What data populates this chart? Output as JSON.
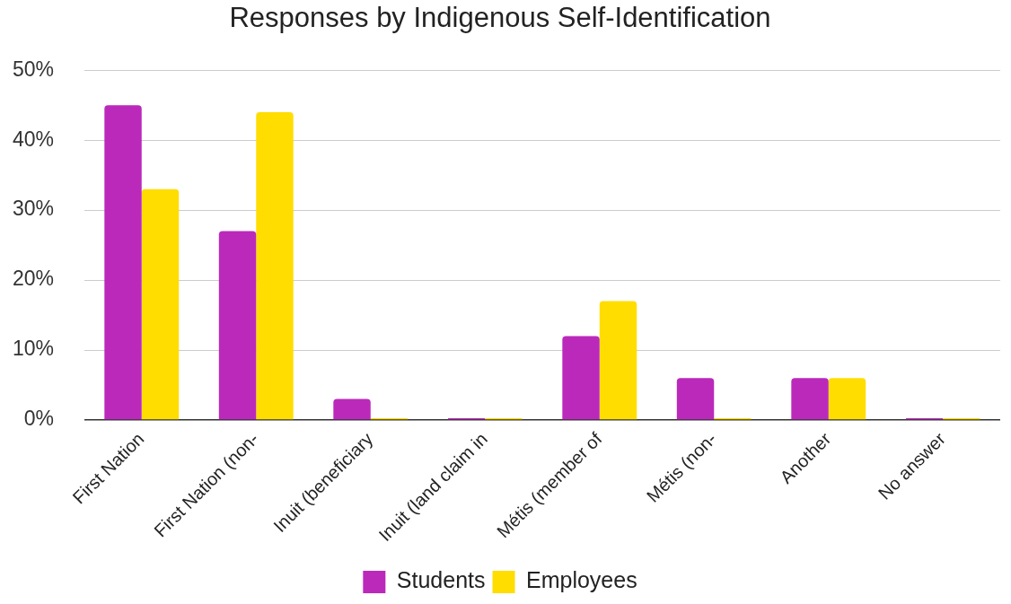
{
  "chart_data": {
    "type": "bar",
    "title": "Responses by Indigenous Self-Identification",
    "categories": [
      "First Nation",
      "First Nation (non-",
      "Inuit (beneficiary",
      "Inuit (land claim in",
      "Métis (member of",
      "Métis (non-",
      "Another",
      "No answer"
    ],
    "series": [
      {
        "name": "Students",
        "color": "#bb29bb",
        "values": [
          45,
          27,
          3,
          0,
          12,
          6,
          6,
          0
        ]
      },
      {
        "name": "Employees",
        "color": "#ffdd00",
        "values": [
          33,
          44,
          0,
          0,
          17,
          0,
          6,
          0
        ]
      }
    ],
    "ylim": [
      0,
      50
    ],
    "yticks": [
      {
        "value": 0,
        "label": "0%"
      },
      {
        "value": 10,
        "label": "10%"
      },
      {
        "value": 20,
        "label": "20%"
      },
      {
        "value": 30,
        "label": "30%"
      },
      {
        "value": 40,
        "label": "40%"
      },
      {
        "value": 50,
        "label": "50%"
      }
    ],
    "grid": "y",
    "legend": "bottom"
  }
}
